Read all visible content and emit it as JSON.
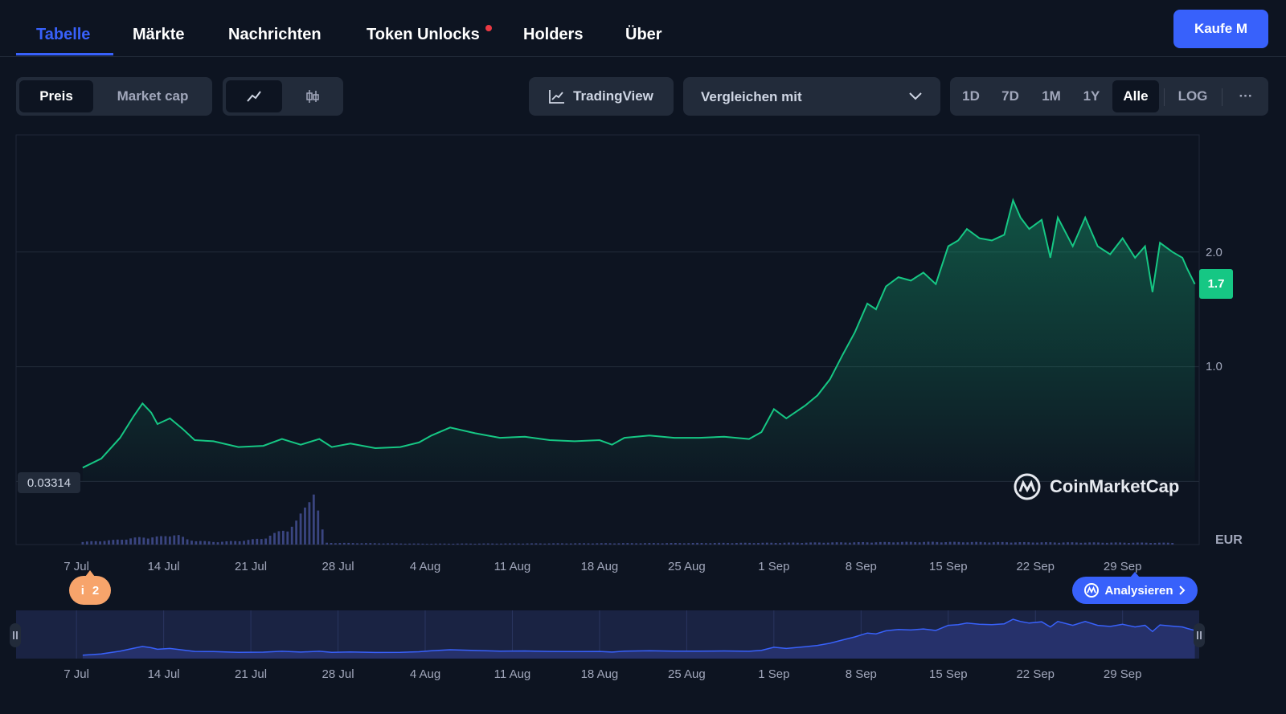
{
  "tabs": [
    {
      "label": "Tabelle",
      "active": true
    },
    {
      "label": "Märkte"
    },
    {
      "label": "Nachrichten"
    },
    {
      "label": "Token Unlocks",
      "dot": true
    },
    {
      "label": "Holders"
    },
    {
      "label": "Über"
    }
  ],
  "buy_button": "Kaufe M",
  "toolbar": {
    "metric_options": [
      "Preis",
      "Market cap"
    ],
    "selected_metric": "Preis",
    "chart_style_icons": [
      "line-chart-icon",
      "candlestick-icon"
    ],
    "tradingview_label": "TradingView",
    "compare_placeholder": "Vergleichen mit",
    "ranges": [
      "1D",
      "7D",
      "1M",
      "1Y",
      "Alle"
    ],
    "selected_range": "Alle",
    "log_label": "LOG",
    "more_label": "···"
  },
  "chart_data": {
    "type": "area",
    "currency": "EUR",
    "y_ticks": [
      "2.0",
      "1.0"
    ],
    "ylim": [
      -0.55,
      3.02
    ],
    "current_price_label": "1.7",
    "current_price": 1.72,
    "start_price_label": "0.03314",
    "watermark": "CoinMarketCap",
    "x_tick_labels": [
      "7 Jul",
      "14 Jul",
      "21 Jul",
      "28 Jul",
      "4 Aug",
      "11 Aug",
      "18 Aug",
      "25 Aug",
      "1 Sep",
      "8 Sep",
      "15 Sep",
      "22 Sep",
      "29 Sep"
    ],
    "x_ticks": [
      2,
      9,
      16,
      23,
      30,
      37,
      44,
      51,
      58,
      65,
      72,
      79,
      86
    ],
    "x_range": [
      -2.85,
      92.15
    ],
    "x_unit": "days since 5 Jul",
    "grid": true,
    "colors": {
      "line": "#16c784",
      "volume": "#3a4580",
      "navigator_line": "#3861fb"
    },
    "series": [
      {
        "values": [
          [
            2.5,
            0.12
          ],
          [
            4,
            0.2
          ],
          [
            5.5,
            0.38
          ],
          [
            6.6,
            0.57
          ],
          [
            7.3,
            0.68
          ],
          [
            8,
            0.6
          ],
          [
            8.5,
            0.5
          ],
          [
            9.5,
            0.55
          ],
          [
            10.5,
            0.46
          ],
          [
            11.5,
            0.36
          ],
          [
            13,
            0.35
          ],
          [
            15,
            0.3
          ],
          [
            17,
            0.31
          ],
          [
            18.5,
            0.37
          ],
          [
            20,
            0.32
          ],
          [
            21.5,
            0.37
          ],
          [
            22.5,
            0.3
          ],
          [
            24,
            0.33
          ],
          [
            26,
            0.29
          ],
          [
            28,
            0.3
          ],
          [
            29.5,
            0.34
          ],
          [
            30.5,
            0.4
          ],
          [
            32,
            0.47
          ],
          [
            34,
            0.42
          ],
          [
            36,
            0.38
          ],
          [
            38,
            0.39
          ],
          [
            40,
            0.36
          ],
          [
            42,
            0.35
          ],
          [
            44,
            0.36
          ],
          [
            45,
            0.32
          ],
          [
            46,
            0.38
          ],
          [
            48,
            0.4
          ],
          [
            50,
            0.38
          ],
          [
            52,
            0.38
          ],
          [
            54,
            0.39
          ],
          [
            56,
            0.37
          ],
          [
            57,
            0.43
          ],
          [
            58,
            0.63
          ],
          [
            59,
            0.55
          ],
          [
            60.5,
            0.66
          ],
          [
            61.5,
            0.75
          ],
          [
            62.5,
            0.89
          ],
          [
            63.5,
            1.1
          ],
          [
            64.5,
            1.3
          ],
          [
            65.5,
            1.55
          ],
          [
            66.2,
            1.5
          ],
          [
            67,
            1.7
          ],
          [
            68,
            1.78
          ],
          [
            69,
            1.75
          ],
          [
            70,
            1.82
          ],
          [
            71,
            1.72
          ],
          [
            72,
            2.05
          ],
          [
            72.8,
            2.1
          ],
          [
            73.5,
            2.2
          ],
          [
            74.5,
            2.12
          ],
          [
            75.5,
            2.1
          ],
          [
            76.5,
            2.15
          ],
          [
            77.2,
            2.45
          ],
          [
            77.8,
            2.3
          ],
          [
            78.5,
            2.2
          ],
          [
            79.5,
            2.28
          ],
          [
            80.2,
            1.95
          ],
          [
            80.8,
            2.3
          ],
          [
            82,
            2.05
          ],
          [
            83,
            2.3
          ],
          [
            84,
            2.05
          ],
          [
            85,
            1.98
          ],
          [
            86,
            2.12
          ],
          [
            87,
            1.95
          ],
          [
            87.8,
            2.05
          ],
          [
            88.4,
            1.65
          ],
          [
            89,
            2.08
          ],
          [
            90,
            2.0
          ],
          [
            90.8,
            1.95
          ],
          [
            91.2,
            1.85
          ],
          [
            91.8,
            1.72
          ]
        ]
      }
    ],
    "volume": [
      [
        2.5,
        0.03
      ],
      [
        5,
        0.05
      ],
      [
        7,
        0.08
      ],
      [
        9,
        0.09
      ],
      [
        10,
        0.12
      ],
      [
        11,
        0.05
      ],
      [
        13,
        0.03
      ],
      [
        15,
        0.04
      ],
      [
        17,
        0.07
      ],
      [
        18,
        0.13
      ],
      [
        19,
        0.18
      ],
      [
        19.8,
        0.28
      ],
      [
        20.5,
        0.45
      ],
      [
        21,
        0.68
      ],
      [
        21.2,
        0.55
      ],
      [
        21.5,
        0.3
      ],
      [
        22,
        0.02
      ],
      [
        30,
        0.01
      ],
      [
        58,
        0.02
      ],
      [
        70,
        0.03
      ],
      [
        90,
        0.02
      ]
    ],
    "navigator": {
      "x_tick_labels": [
        "7 Jul",
        "14 Jul",
        "21 Jul",
        "28 Jul",
        "4 Aug",
        "11 Aug",
        "18 Aug",
        "25 Aug",
        "1 Sep",
        "8 Sep",
        "15 Sep",
        "22 Sep",
        "29 Sep"
      ]
    }
  },
  "events": {
    "count_label": "2",
    "icon_label": "i"
  },
  "analyze_label": "Analysieren",
  "currency_label": "EUR"
}
